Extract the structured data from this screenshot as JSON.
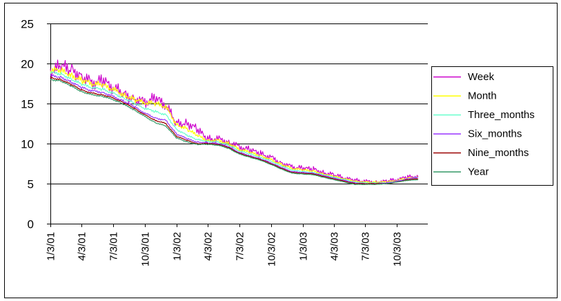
{
  "chart_data": {
    "type": "line",
    "title": "",
    "xlabel": "",
    "ylabel": "",
    "ylim": [
      0,
      25
    ],
    "yticks": [
      0,
      5,
      10,
      15,
      20,
      25
    ],
    "x_tick_labels": [
      "1/3/01",
      "4/3/01",
      "7/3/01",
      "10/3/01",
      "1/3/02",
      "4/3/02",
      "7/3/02",
      "10/3/02",
      "1/3/03",
      "4/3/03",
      "7/3/03",
      "10/3/03"
    ],
    "grid": "horizontal",
    "legend_position": "right",
    "series": [
      {
        "name": "Week",
        "color": "#cc00cc",
        "points": [
          [
            "1/3/01",
            19.0
          ],
          [
            "2/3/01",
            19.6
          ],
          [
            "3/3/01",
            19.3
          ],
          [
            "4/3/01",
            18.5
          ],
          [
            "5/3/01",
            17.6
          ],
          [
            "6/3/01",
            17.8
          ],
          [
            "7/3/01",
            17.0
          ],
          [
            "8/3/01",
            16.2
          ],
          [
            "9/3/01",
            15.6
          ],
          [
            "10/3/01",
            15.2
          ],
          [
            "11/3/01",
            15.6
          ],
          [
            "12/3/01",
            14.8
          ],
          [
            "1/3/02",
            12.5
          ],
          [
            "2/3/02",
            12.6
          ],
          [
            "3/3/02",
            11.8
          ],
          [
            "4/3/02",
            10.5
          ],
          [
            "5/3/02",
            10.6
          ],
          [
            "6/3/02",
            10.2
          ],
          [
            "7/3/02",
            9.6
          ],
          [
            "8/3/02",
            9.2
          ],
          [
            "9/3/02",
            8.7
          ],
          [
            "10/3/02",
            8.3
          ],
          [
            "11/3/02",
            7.6
          ],
          [
            "12/3/02",
            7.1
          ],
          [
            "1/3/03",
            6.9
          ],
          [
            "2/3/03",
            6.8
          ],
          [
            "3/3/03",
            6.4
          ],
          [
            "4/3/03",
            6.1
          ],
          [
            "5/3/03",
            5.7
          ],
          [
            "6/3/03",
            5.4
          ],
          [
            "7/3/03",
            5.3
          ],
          [
            "8/3/03",
            5.2
          ],
          [
            "9/3/03",
            5.3
          ],
          [
            "10/3/03",
            5.5
          ],
          [
            "11/3/03",
            5.8
          ],
          [
            "12/3/03",
            5.9
          ]
        ]
      },
      {
        "name": "Month",
        "color": "#ffff00",
        "points": [
          [
            "1/3/01",
            19.2
          ],
          [
            "2/3/01",
            19.1
          ],
          [
            "3/3/01",
            18.6
          ],
          [
            "4/3/01",
            17.9
          ],
          [
            "5/3/01",
            17.5
          ],
          [
            "6/3/01",
            17.3
          ],
          [
            "7/3/01",
            16.8
          ],
          [
            "8/3/01",
            16.1
          ],
          [
            "9/3/01",
            15.5
          ],
          [
            "10/3/01",
            15.1
          ],
          [
            "11/3/01",
            15.0
          ],
          [
            "12/3/01",
            14.6
          ],
          [
            "1/3/02",
            12.4
          ],
          [
            "2/3/02",
            11.8
          ],
          [
            "3/3/02",
            11.0
          ],
          [
            "4/3/02",
            10.4
          ],
          [
            "5/3/02",
            10.4
          ],
          [
            "6/3/02",
            10.0
          ],
          [
            "7/3/02",
            9.3
          ],
          [
            "8/3/02",
            8.9
          ],
          [
            "9/3/02",
            8.5
          ],
          [
            "10/3/02",
            8.0
          ],
          [
            "11/3/02",
            7.4
          ],
          [
            "12/3/02",
            6.9
          ],
          [
            "1/3/03",
            6.7
          ],
          [
            "2/3/03",
            6.6
          ],
          [
            "3/3/03",
            6.2
          ],
          [
            "4/3/03",
            5.9
          ],
          [
            "5/3/03",
            5.6
          ],
          [
            "6/3/03",
            5.3
          ],
          [
            "7/3/03",
            5.2
          ],
          [
            "8/3/03",
            5.2
          ],
          [
            "9/3/03",
            5.2
          ],
          [
            "10/3/03",
            5.4
          ],
          [
            "11/3/03",
            5.7
          ],
          [
            "12/3/03",
            5.8
          ]
        ]
      },
      {
        "name": "Three_months",
        "color": "#66ffcc",
        "points": [
          [
            "1/3/01",
            18.9
          ],
          [
            "2/3/01",
            18.7
          ],
          [
            "3/3/01",
            18.1
          ],
          [
            "4/3/01",
            17.4
          ],
          [
            "5/3/01",
            17.0
          ],
          [
            "6/3/01",
            16.8
          ],
          [
            "7/3/01",
            16.3
          ],
          [
            "8/3/01",
            15.7
          ],
          [
            "9/3/01",
            15.0
          ],
          [
            "10/3/01",
            14.4
          ],
          [
            "11/3/01",
            14.0
          ],
          [
            "12/3/01",
            13.6
          ],
          [
            "1/3/02",
            11.8
          ],
          [
            "2/3/02",
            11.0
          ],
          [
            "3/3/02",
            10.5
          ],
          [
            "4/3/02",
            10.3
          ],
          [
            "5/3/02",
            10.2
          ],
          [
            "6/3/02",
            9.8
          ],
          [
            "7/3/02",
            9.1
          ],
          [
            "8/3/02",
            8.7
          ],
          [
            "9/3/02",
            8.3
          ],
          [
            "10/3/02",
            7.8
          ],
          [
            "11/3/02",
            7.2
          ],
          [
            "12/3/02",
            6.7
          ],
          [
            "1/3/03",
            6.5
          ],
          [
            "2/3/03",
            6.4
          ],
          [
            "3/3/03",
            6.1
          ],
          [
            "4/3/03",
            5.8
          ],
          [
            "5/3/03",
            5.5
          ],
          [
            "6/3/03",
            5.2
          ],
          [
            "7/3/03",
            5.1
          ],
          [
            "8/3/03",
            5.1
          ],
          [
            "9/3/03",
            5.1
          ],
          [
            "10/3/03",
            5.3
          ],
          [
            "11/3/03",
            5.6
          ],
          [
            "12/3/03",
            5.8
          ]
        ]
      },
      {
        "name": "Six_months",
        "color": "#9933ff",
        "points": [
          [
            "1/3/01",
            18.5
          ],
          [
            "2/3/01",
            18.3
          ],
          [
            "3/3/01",
            17.7
          ],
          [
            "4/3/01",
            17.0
          ],
          [
            "5/3/01",
            16.6
          ],
          [
            "6/3/01",
            16.4
          ],
          [
            "7/3/01",
            15.9
          ],
          [
            "8/3/01",
            15.3
          ],
          [
            "9/3/01",
            14.6
          ],
          [
            "10/3/01",
            13.8
          ],
          [
            "11/3/01",
            13.2
          ],
          [
            "12/3/01",
            12.9
          ],
          [
            "1/3/02",
            11.2
          ],
          [
            "2/3/02",
            10.6
          ],
          [
            "3/3/02",
            10.2
          ],
          [
            "4/3/02",
            10.1
          ],
          [
            "5/3/02",
            10.0
          ],
          [
            "6/3/02",
            9.6
          ],
          [
            "7/3/02",
            8.9
          ],
          [
            "8/3/02",
            8.5
          ],
          [
            "9/3/02",
            8.1
          ],
          [
            "10/3/02",
            7.6
          ],
          [
            "11/3/02",
            7.0
          ],
          [
            "12/3/02",
            6.5
          ],
          [
            "1/3/03",
            6.4
          ],
          [
            "2/3/03",
            6.3
          ],
          [
            "3/3/03",
            6.0
          ],
          [
            "4/3/03",
            5.7
          ],
          [
            "5/3/03",
            5.4
          ],
          [
            "6/3/03",
            5.1
          ],
          [
            "7/3/03",
            5.0
          ],
          [
            "8/3/03",
            5.0
          ],
          [
            "9/3/03",
            5.1
          ],
          [
            "10/3/03",
            5.3
          ],
          [
            "11/3/03",
            5.6
          ],
          [
            "12/3/03",
            5.8
          ]
        ]
      },
      {
        "name": "Nine_months",
        "color": "#990000",
        "points": [
          [
            "1/3/01",
            18.2
          ],
          [
            "2/3/01",
            18.0
          ],
          [
            "3/3/01",
            17.4
          ],
          [
            "4/3/01",
            16.7
          ],
          [
            "5/3/01",
            16.3
          ],
          [
            "6/3/01",
            16.1
          ],
          [
            "7/3/01",
            15.7
          ],
          [
            "8/3/01",
            15.1
          ],
          [
            "9/3/01",
            14.4
          ],
          [
            "10/3/01",
            13.6
          ],
          [
            "11/3/01",
            12.9
          ],
          [
            "12/3/01",
            12.5
          ],
          [
            "1/3/02",
            10.9
          ],
          [
            "2/3/02",
            10.4
          ],
          [
            "3/3/02",
            10.0
          ],
          [
            "4/3/02",
            10.0
          ],
          [
            "5/3/02",
            9.9
          ],
          [
            "6/3/02",
            9.5
          ],
          [
            "7/3/02",
            8.8
          ],
          [
            "8/3/02",
            8.4
          ],
          [
            "9/3/02",
            8.0
          ],
          [
            "10/3/02",
            7.5
          ],
          [
            "11/3/02",
            6.9
          ],
          [
            "12/3/02",
            6.4
          ],
          [
            "1/3/03",
            6.3
          ],
          [
            "2/3/03",
            6.2
          ],
          [
            "3/3/03",
            5.9
          ],
          [
            "4/3/03",
            5.6
          ],
          [
            "5/3/03",
            5.3
          ],
          [
            "6/3/03",
            5.0
          ],
          [
            "7/3/03",
            5.0
          ],
          [
            "8/3/03",
            5.0
          ],
          [
            "9/3/03",
            5.0
          ],
          [
            "10/3/03",
            5.2
          ],
          [
            "11/3/03",
            5.5
          ],
          [
            "12/3/03",
            5.6
          ]
        ]
      },
      {
        "name": "Year",
        "color": "#339966",
        "points": [
          [
            "1/3/01",
            18.0
          ],
          [
            "2/3/01",
            17.8
          ],
          [
            "3/3/01",
            17.2
          ],
          [
            "4/3/01",
            16.5
          ],
          [
            "5/3/01",
            16.1
          ],
          [
            "6/3/01",
            15.9
          ],
          [
            "7/3/01",
            15.5
          ],
          [
            "8/3/01",
            14.9
          ],
          [
            "9/3/01",
            14.2
          ],
          [
            "10/3/01",
            13.4
          ],
          [
            "11/3/01",
            12.6
          ],
          [
            "12/3/01",
            12.2
          ],
          [
            "1/3/02",
            10.7
          ],
          [
            "2/3/02",
            10.2
          ],
          [
            "3/3/02",
            9.9
          ],
          [
            "4/3/02",
            9.9
          ],
          [
            "5/3/02",
            9.8
          ],
          [
            "6/3/02",
            9.4
          ],
          [
            "7/3/02",
            8.7
          ],
          [
            "8/3/02",
            8.3
          ],
          [
            "9/3/02",
            7.9
          ],
          [
            "10/3/02",
            7.4
          ],
          [
            "11/3/02",
            6.8
          ],
          [
            "12/3/02",
            6.3
          ],
          [
            "1/3/03",
            6.2
          ],
          [
            "2/3/03",
            6.1
          ],
          [
            "3/3/03",
            5.8
          ],
          [
            "4/3/03",
            5.5
          ],
          [
            "5/3/03",
            5.2
          ],
          [
            "6/3/03",
            4.9
          ],
          [
            "7/3/03",
            4.9
          ],
          [
            "8/3/03",
            4.9
          ],
          [
            "9/3/03",
            5.0
          ],
          [
            "10/3/03",
            5.2
          ],
          [
            "11/3/03",
            5.4
          ],
          [
            "12/3/03",
            5.5
          ]
        ]
      }
    ]
  }
}
